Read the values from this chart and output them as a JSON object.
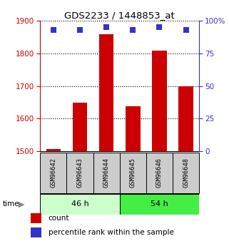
{
  "title": "GDS2233 / 1448853_at",
  "samples": [
    "GSM96642",
    "GSM96643",
    "GSM96644",
    "GSM96645",
    "GSM96646",
    "GSM96648"
  ],
  "bar_values": [
    1507,
    1650,
    1860,
    1638,
    1808,
    1700
  ],
  "percentile_values": [
    93,
    93,
    95,
    93,
    95,
    93
  ],
  "bar_color": "#cc0000",
  "dot_color": "#3333cc",
  "ylim_left": [
    1500,
    1900
  ],
  "ylim_right": [
    0,
    100
  ],
  "yticks_left": [
    1500,
    1600,
    1700,
    1800,
    1900
  ],
  "yticks_right": [
    0,
    25,
    50,
    75,
    100
  ],
  "group_light_color": "#ccffcc",
  "group_dark_color": "#44ee44",
  "sample_box_color": "#cccccc",
  "left_axis_color": "#cc0000",
  "right_axis_color": "#3333cc",
  "bar_width": 0.55,
  "legend_items": [
    "count",
    "percentile rank within the sample"
  ],
  "groups": [
    {
      "label": "46 h",
      "indices": [
        0,
        1,
        2
      ]
    },
    {
      "label": "54 h",
      "indices": [
        3,
        4,
        5
      ]
    }
  ]
}
